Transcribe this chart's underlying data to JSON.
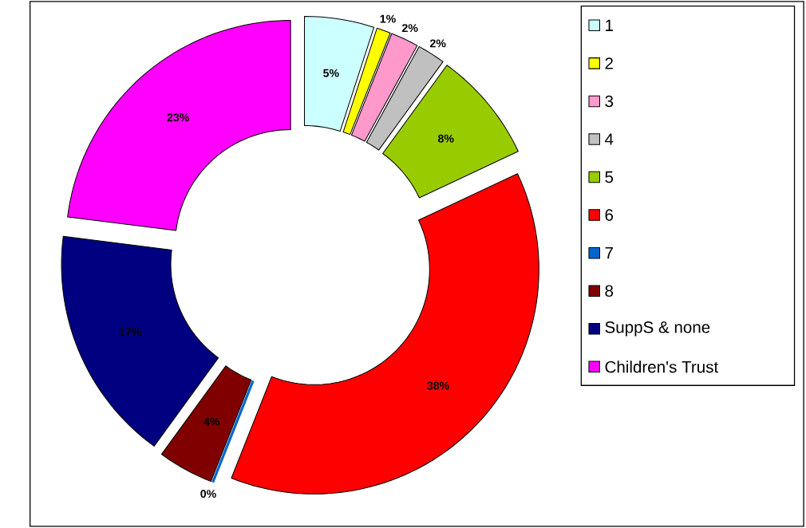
{
  "chart_data": {
    "type": "donut",
    "categories": [
      "1",
      "2",
      "3",
      "4",
      "5",
      "6",
      "7",
      "8",
      "SuppS & none",
      "Children's Trust"
    ],
    "values": [
      5,
      1,
      2,
      2,
      8,
      38,
      0,
      4,
      17,
      23
    ],
    "value_labels": [
      "5%",
      "1%",
      "2%",
      "2%",
      "8%",
      "38%",
      "0%",
      "4%",
      "17%",
      "23%"
    ],
    "colors": [
      "#ccffff",
      "#ffff00",
      "#ff99cc",
      "#c0c0c0",
      "#99cc00",
      "#ff0000",
      "#0066cc",
      "#800000",
      "#000080",
      "#ff00ff"
    ],
    "legend": "right"
  }
}
